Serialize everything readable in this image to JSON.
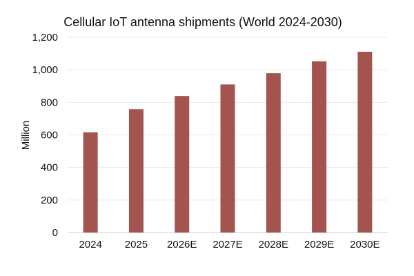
{
  "chart_data": {
    "type": "bar",
    "title": "Cellular IoT antenna shipments (World 2024-2030)",
    "xlabel": "",
    "ylabel": "Million",
    "categories": [
      "2024",
      "2025",
      "2026E",
      "2027E",
      "2028E",
      "2029E",
      "2030E"
    ],
    "values": [
      616,
      758,
      839,
      910,
      979,
      1052,
      1111
    ],
    "ylim": [
      0,
      1200
    ],
    "yticks": [
      0,
      200,
      400,
      600,
      800,
      1000,
      1200
    ],
    "ytick_labels": [
      "0",
      "200",
      "400",
      "600",
      "800",
      "1,000",
      "1,200"
    ],
    "grid": true,
    "legend": "none",
    "bar_color": "#a4544e"
  }
}
